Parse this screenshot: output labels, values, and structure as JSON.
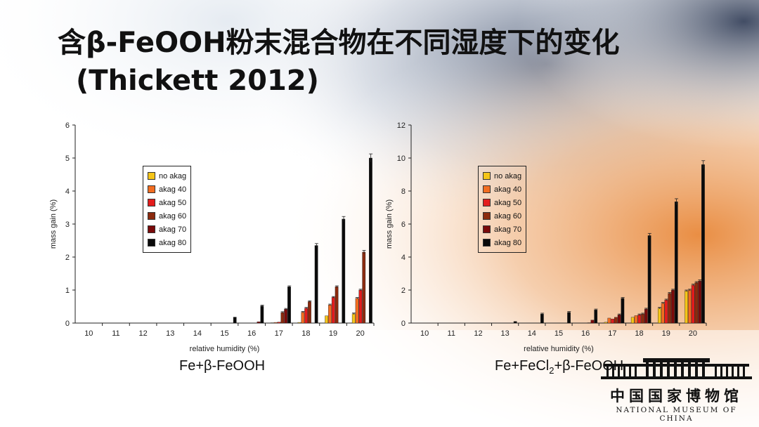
{
  "slide": {
    "title_line1": "含β-FeOOH粉末混合物在不同湿度下的变化",
    "title_line2": "(Thickett 2012)"
  },
  "logo": {
    "name_cn": "中国国家博物馆",
    "name_en": "NATIONAL MUSEUM OF CHINA"
  },
  "chart_data": [
    {
      "type": "bar",
      "caption": "Fe+β-FeOOH",
      "xlabel": "relative humidity (%)",
      "ylabel": "mass gain (%)",
      "ylim": [
        0,
        6
      ],
      "yticks": [
        "0",
        "1",
        "2",
        "3",
        "4",
        "5",
        "6"
      ],
      "categories": [
        "10",
        "11",
        "12",
        "13",
        "14",
        "15",
        "16",
        "17",
        "18",
        "19",
        "20"
      ],
      "series": [
        {
          "name": "no akag",
          "color": "#f5c518",
          "values": [
            0,
            0,
            0,
            0,
            0,
            0,
            0,
            0.01,
            0.02,
            0.22,
            0.28
          ]
        },
        {
          "name": "akag 40",
          "color": "#f26d21",
          "values": [
            0,
            0,
            0,
            0,
            0,
            0,
            0,
            0.02,
            0.33,
            0.55,
            0.75
          ]
        },
        {
          "name": "akag 50",
          "color": "#e31c1c",
          "values": [
            0,
            0,
            0,
            0,
            0,
            0,
            0,
            0.03,
            0.45,
            0.78,
            1.0
          ]
        },
        {
          "name": "akag 60",
          "color": "#8b2a0e",
          "values": [
            0,
            0,
            0,
            0,
            0,
            0,
            0,
            0.32,
            0.65,
            1.1,
            2.15
          ]
        },
        {
          "name": "akag 70",
          "color": "#7a0a0a",
          "values": [
            0,
            0,
            0,
            0,
            0,
            0,
            0.04,
            0.42,
            0.0,
            0.0,
            0.0
          ]
        },
        {
          "name": "akag 80",
          "color": "#0a0a0a",
          "values": [
            0,
            0,
            0,
            0,
            0,
            0.18,
            0.52,
            1.1,
            2.35,
            3.15,
            5.0
          ]
        }
      ],
      "legend_position": "upper-left"
    },
    {
      "type": "bar",
      "caption_parts": [
        "Fe+FeCl",
        "2",
        "+β-FeOOH"
      ],
      "xlabel": "relative humidity (%)",
      "ylabel": "mass gain (%)",
      "ylim": [
        0,
        12
      ],
      "yticks": [
        "0",
        "2",
        "4",
        "6",
        "8",
        "10",
        "12"
      ],
      "categories": [
        "10",
        "11",
        "12",
        "13",
        "14",
        "15",
        "16",
        "17",
        "18",
        "19",
        "20"
      ],
      "series": [
        {
          "name": "no akag",
          "color": "#f5c518",
          "values": [
            0,
            0,
            0,
            0,
            0,
            0,
            0,
            0.05,
            0.35,
            0.9,
            1.95
          ]
        },
        {
          "name": "akag 40",
          "color": "#f26d21",
          "values": [
            0,
            0,
            0,
            0,
            0,
            0,
            0,
            0.3,
            0.45,
            1.2,
            2.0
          ]
        },
        {
          "name": "akag 50",
          "color": "#e31c1c",
          "values": [
            0,
            0,
            0,
            0,
            0,
            0,
            0,
            0.25,
            0.5,
            1.4,
            2.3
          ]
        },
        {
          "name": "akag 60",
          "color": "#8b2a0e",
          "values": [
            0,
            0,
            0,
            0,
            0,
            0,
            0.02,
            0.35,
            0.55,
            1.8,
            2.45
          ]
        },
        {
          "name": "akag 70",
          "color": "#7a0a0a",
          "values": [
            0,
            0,
            0,
            0,
            0,
            0,
            0.18,
            0.5,
            0.85,
            2.0,
            2.55
          ]
        },
        {
          "name": "akag 80",
          "color": "#0a0a0a",
          "values": [
            0,
            0,
            0,
            0.1,
            0.55,
            0.65,
            0.8,
            1.5,
            5.3,
            7.35,
            9.6
          ]
        }
      ],
      "legend_position": "upper-left"
    }
  ]
}
